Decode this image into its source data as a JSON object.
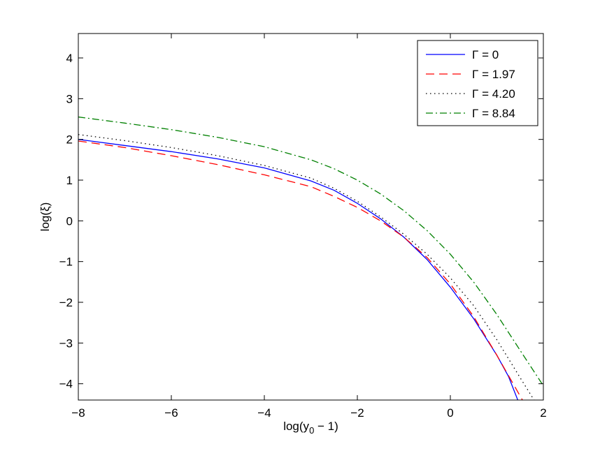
{
  "chart_data": {
    "type": "line",
    "title": "",
    "xlabel_main": "log(y",
    "xlabel_sub": "0",
    "xlabel_tail": " − 1)",
    "ylabel": "log(ξ)",
    "xlim": [
      -8,
      2
    ],
    "ylim": [
      -4.4,
      4.6
    ],
    "xticks": [
      -8,
      -6,
      -4,
      -2,
      0,
      2
    ],
    "xtick_labels": [
      "−8",
      "−6",
      "−4",
      "−2",
      "0",
      "2"
    ],
    "yticks": [
      -4,
      -3,
      -2,
      -1,
      0,
      1,
      2,
      3,
      4
    ],
    "ytick_labels": [
      "−4",
      "−3",
      "−2",
      "−1",
      "0",
      "1",
      "2",
      "3",
      "4"
    ],
    "grid": false,
    "legend_position": "top-right",
    "series": [
      {
        "name": "Γ = 0",
        "color": "#0000ff",
        "dash": "solid",
        "x": [
          -8,
          -7,
          -6,
          -5,
          -4,
          -3,
          -2.5,
          -2,
          -1.5,
          -1,
          -0.5,
          0,
          0.5,
          1,
          1.25,
          1.45
        ],
        "y": [
          2.0,
          1.85,
          1.7,
          1.52,
          1.3,
          0.98,
          0.75,
          0.43,
          0.05,
          -0.4,
          -0.95,
          -1.63,
          -2.4,
          -3.3,
          -3.82,
          -4.4
        ]
      },
      {
        "name": "Γ = 1.97",
        "color": "#ff0000",
        "dash": "dashed",
        "x": [
          -8,
          -7,
          -6,
          -5,
          -4,
          -3,
          -2.5,
          -2,
          -1.5,
          -1,
          -0.5,
          0,
          0.5,
          1,
          1.3,
          1.55
        ],
        "y": [
          1.96,
          1.8,
          1.6,
          1.38,
          1.13,
          0.84,
          0.6,
          0.33,
          0.0,
          -0.4,
          -0.9,
          -1.55,
          -2.35,
          -3.3,
          -3.9,
          -4.4
        ]
      },
      {
        "name": "Γ = 4.20",
        "color": "#000000",
        "dash": "dotted",
        "x": [
          -8,
          -7,
          -6,
          -5,
          -4,
          -3,
          -2.5,
          -2,
          -1.5,
          -1,
          -0.5,
          0,
          0.5,
          1,
          1.5,
          1.8
        ],
        "y": [
          2.12,
          1.97,
          1.8,
          1.6,
          1.36,
          1.05,
          0.8,
          0.48,
          0.1,
          -0.33,
          -0.82,
          -1.4,
          -2.08,
          -2.92,
          -3.85,
          -4.4
        ]
      },
      {
        "name": "Γ = 8.84",
        "color": "#008000",
        "dash": "dashdot",
        "x": [
          -8,
          -7,
          -6,
          -5,
          -4,
          -3,
          -2.5,
          -2,
          -1.5,
          -1,
          -0.5,
          0,
          0.5,
          1,
          1.5,
          2
        ],
        "y": [
          2.55,
          2.4,
          2.24,
          2.05,
          1.82,
          1.5,
          1.28,
          1.0,
          0.66,
          0.25,
          -0.24,
          -0.82,
          -1.5,
          -2.3,
          -3.18,
          -4.05
        ]
      }
    ]
  }
}
